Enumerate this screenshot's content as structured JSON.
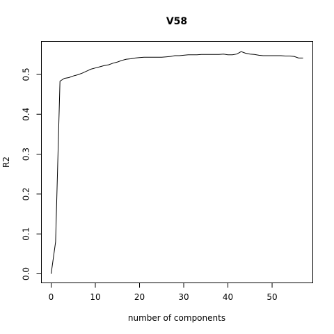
{
  "chart_data": {
    "type": "line",
    "title": "V58",
    "xlabel": "number of components",
    "ylabel": "R2",
    "xlim": [
      0,
      57
    ],
    "ylim": [
      0,
      0.56
    ],
    "xticks": [
      0,
      10,
      20,
      30,
      40,
      50
    ],
    "yticks": [
      0.0,
      0.1,
      0.2,
      0.3,
      0.4,
      0.5
    ],
    "xtick_labels": [
      "0",
      "10",
      "20",
      "30",
      "40",
      "50"
    ],
    "ytick_labels": [
      "0.0",
      "0.1",
      "0.2",
      "0.3",
      "0.4",
      "0.5"
    ],
    "grid": false,
    "series": [
      {
        "x": [
          0,
          1,
          2,
          3,
          4,
          5,
          6,
          7,
          8,
          9,
          10,
          11,
          12,
          13,
          14,
          15,
          16,
          17,
          18,
          19,
          20,
          21,
          22,
          23,
          24,
          25,
          26,
          27,
          28,
          29,
          30,
          31,
          32,
          33,
          34,
          35,
          36,
          37,
          38,
          39,
          40,
          41,
          42,
          43,
          44,
          45,
          46,
          47,
          48,
          49,
          50,
          51,
          52,
          53,
          54,
          55,
          56,
          57
        ],
        "values": [
          0.0,
          0.08,
          0.483,
          0.49,
          0.492,
          0.496,
          0.499,
          0.503,
          0.508,
          0.513,
          0.516,
          0.519,
          0.522,
          0.524,
          0.528,
          0.531,
          0.535,
          0.538,
          0.539,
          0.541,
          0.542,
          0.543,
          0.543,
          0.543,
          0.543,
          0.543,
          0.544,
          0.545,
          0.547,
          0.547,
          0.548,
          0.549,
          0.549,
          0.549,
          0.55,
          0.55,
          0.55,
          0.55,
          0.55,
          0.551,
          0.549,
          0.549,
          0.551,
          0.557,
          0.553,
          0.551,
          0.55,
          0.548,
          0.547,
          0.547,
          0.547,
          0.547,
          0.547,
          0.546,
          0.546,
          0.545,
          0.541,
          0.541
        ],
        "color": "#000000"
      }
    ]
  }
}
